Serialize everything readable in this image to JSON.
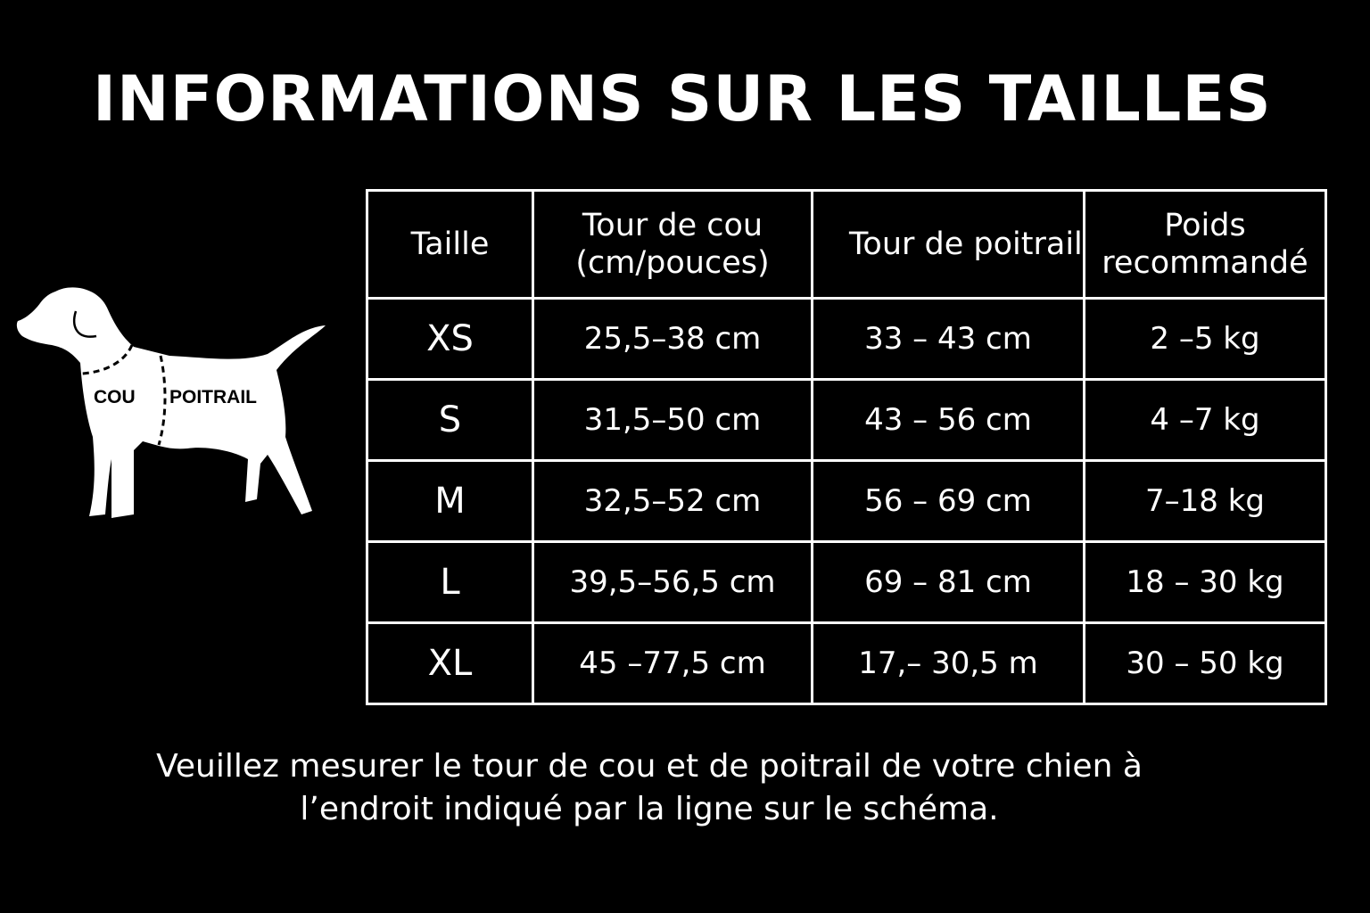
{
  "title": "INFORMATIONS SUR LES TAILLES",
  "diagram": {
    "neck_label": "COU",
    "chest_label": "POITRAIL"
  },
  "table": {
    "headers": [
      "Taille",
      "Tour de cou (cm/pouces)",
      "Tour de poitrail",
      "Poids recommandé"
    ],
    "rows": [
      {
        "size": "XS",
        "neck": "25,5–38 cm",
        "chest": "33 – 43 cm",
        "weight": "2 –5 kg"
      },
      {
        "size": "S",
        "neck": "31,5–50 cm",
        "chest": "43 – 56 cm",
        "weight": "4 –7 kg"
      },
      {
        "size": "M",
        "neck": "32,5–52 cm",
        "chest": "56 – 69 cm",
        "weight": "7–18 kg"
      },
      {
        "size": "L",
        "neck": "39,5–56,5 cm",
        "chest": "69 – 81 cm",
        "weight": "18 – 30 kg"
      },
      {
        "size": "XL",
        "neck": "45 –77,5 cm",
        "chest": "17,– 30,5 m",
        "weight": "30 – 50 kg"
      }
    ]
  },
  "note": {
    "line1": "Veuillez mesurer le tour de cou et de poitrail de votre chien à",
    "line2": "l’endroit indiqué par la ligne sur le schéma."
  }
}
